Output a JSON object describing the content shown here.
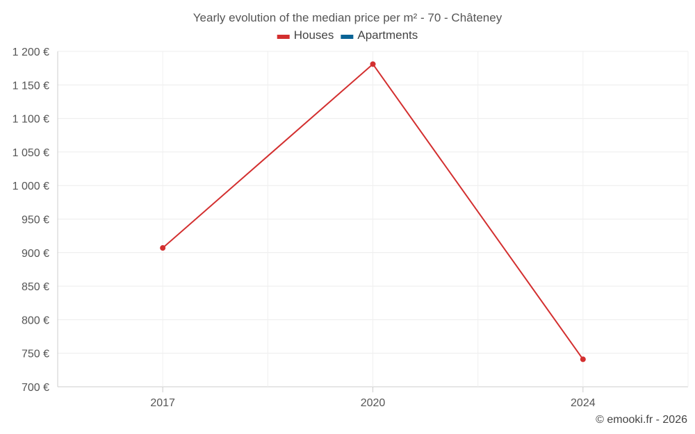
{
  "chart_data": {
    "type": "line",
    "title": "Yearly evolution of the median price per m² - 70 - Châteney",
    "categories": [
      "2017",
      "2020",
      "2024"
    ],
    "series": [
      {
        "name": "Houses",
        "color": "#d32f2f",
        "values": [
          907,
          1181,
          741
        ]
      },
      {
        "name": "Apartments",
        "color": "#0a6496",
        "values": [
          null,
          null,
          null
        ]
      }
    ],
    "y_ticks": [
      700,
      750,
      800,
      850,
      900,
      950,
      1000,
      1050,
      1100,
      1150,
      1200
    ],
    "y_tick_labels": [
      "700 €",
      "750 €",
      "800 €",
      "850 €",
      "900 €",
      "950 €",
      "1 000 €",
      "1 050 €",
      "1 100 €",
      "1 150 €",
      "1 200 €"
    ],
    "ylim": [
      700,
      1200
    ],
    "xlabel": "",
    "ylabel": "",
    "grid": true,
    "legend_position": "top-center",
    "credit": "© emooki.fr - 2026"
  }
}
